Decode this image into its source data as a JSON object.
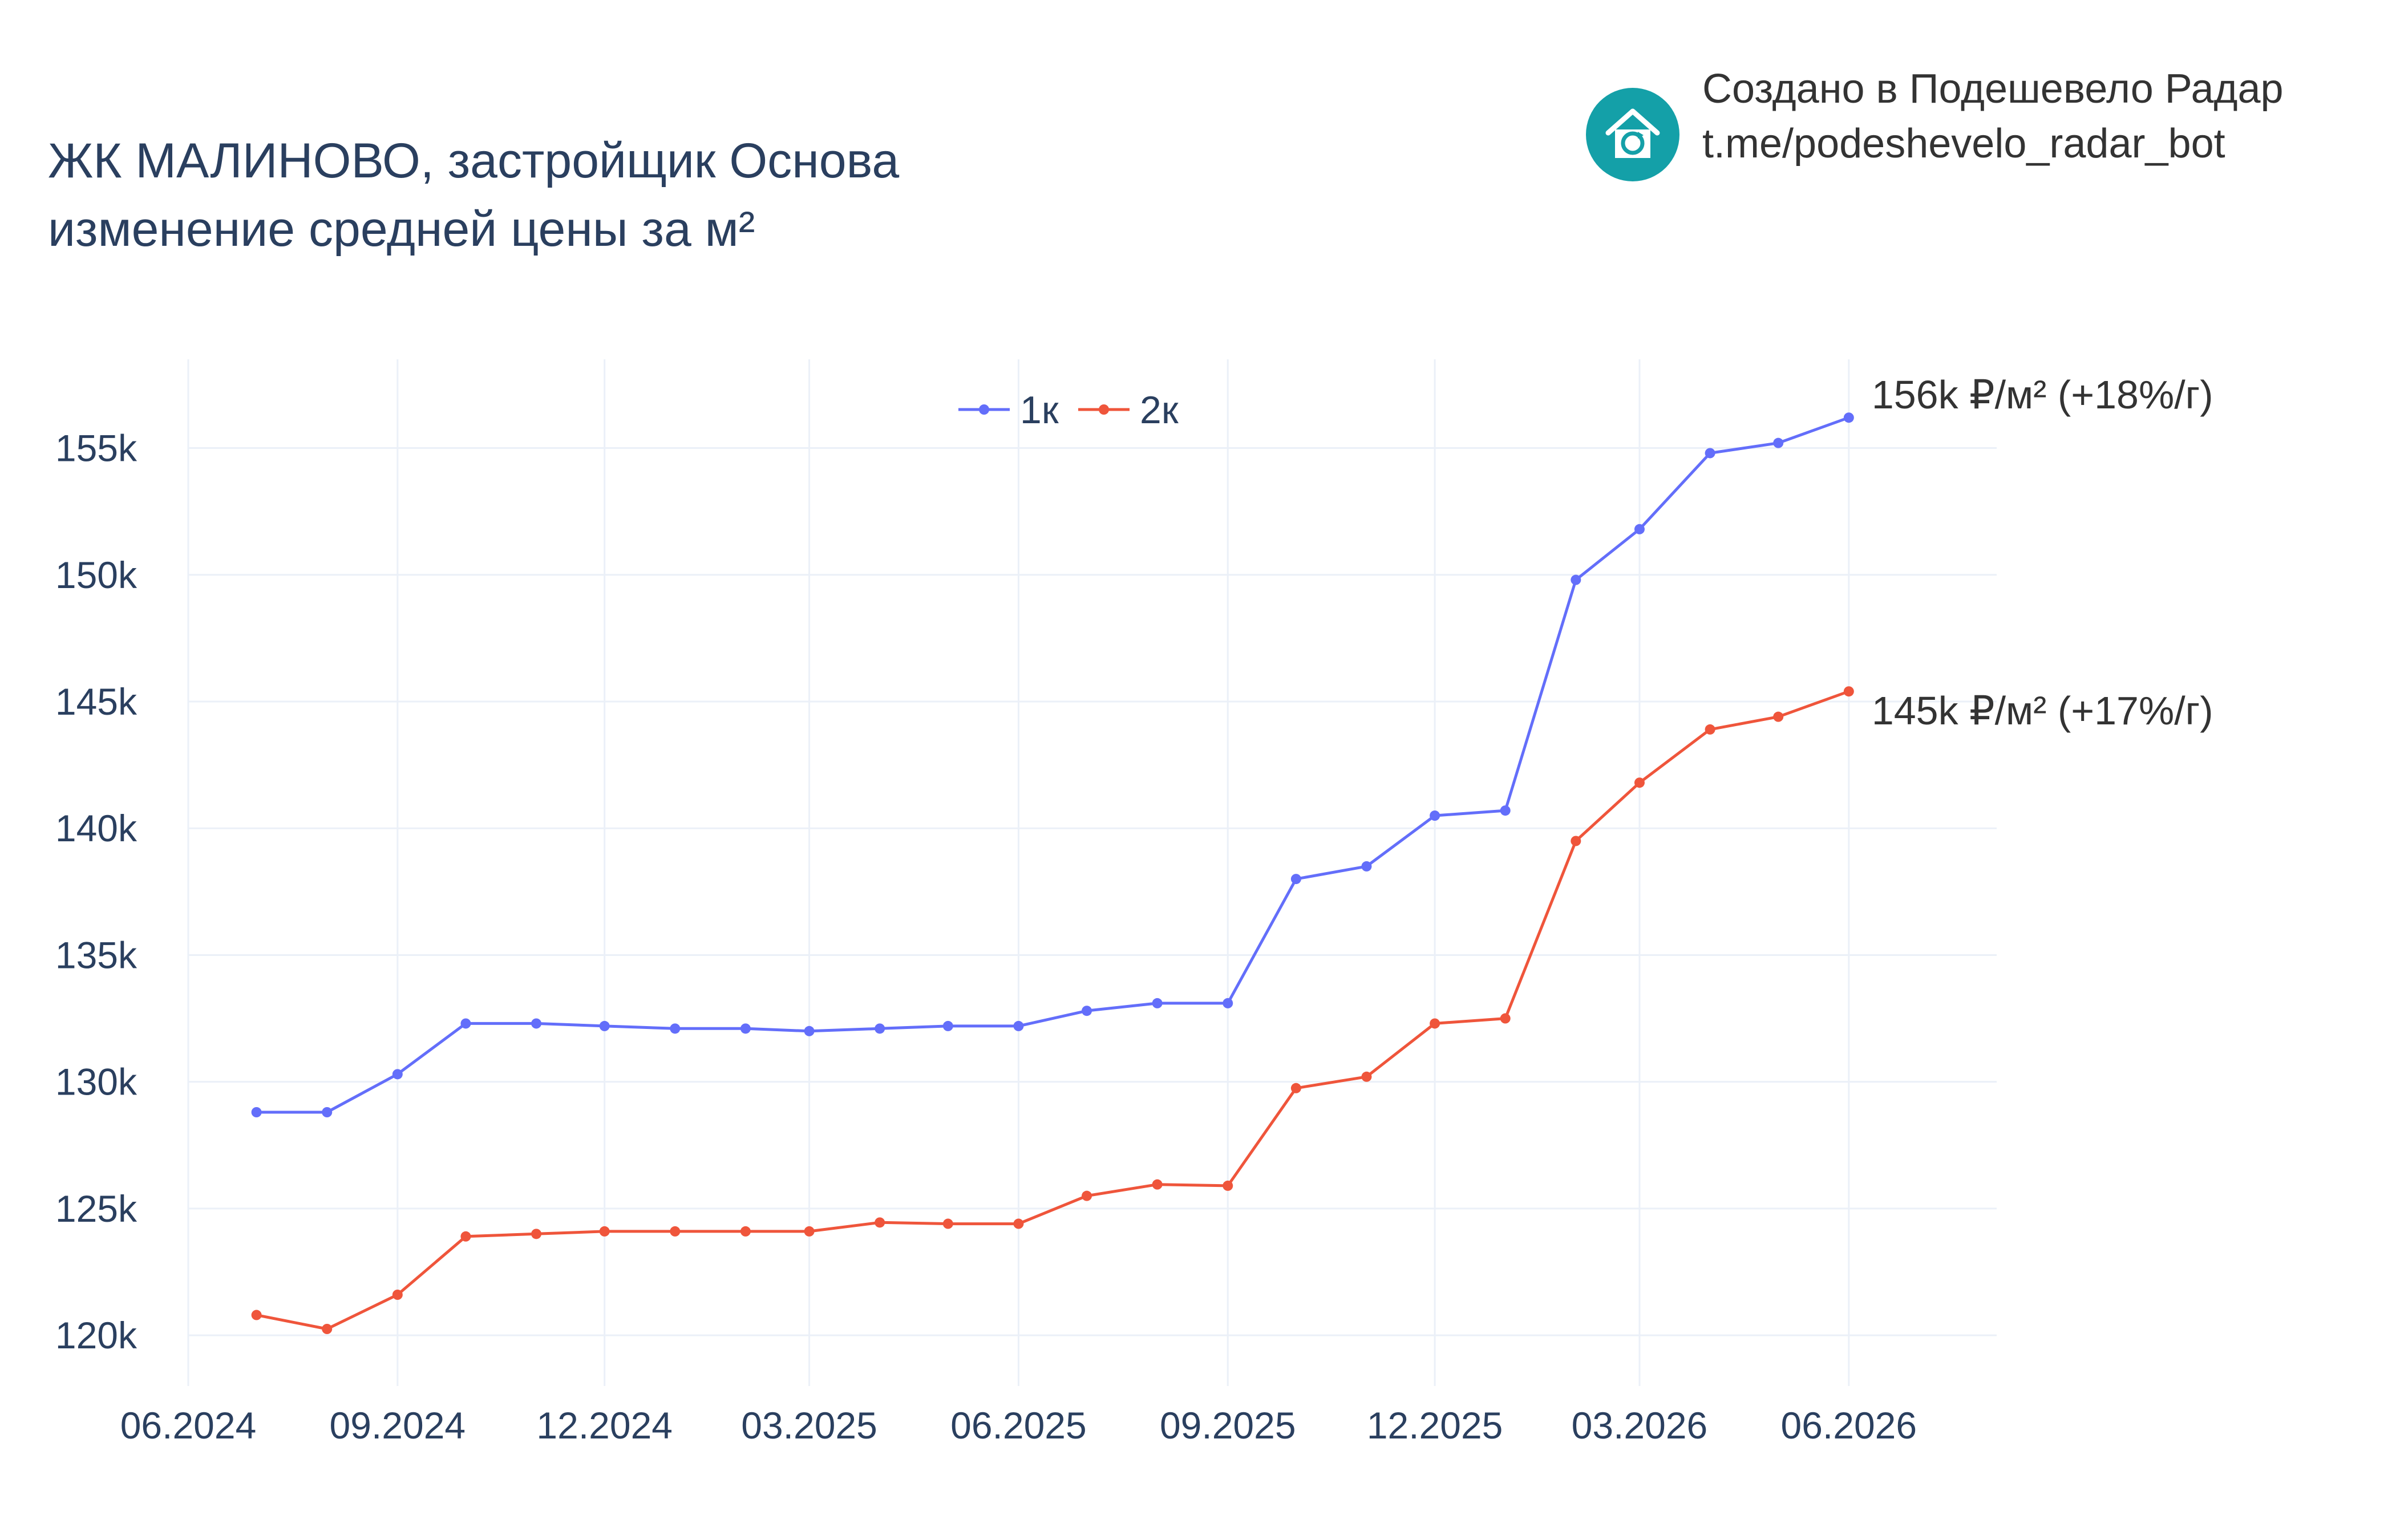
{
  "title_line1": "ЖК МАЛИНОВО, застройщик Основа",
  "title_line2": "изменение средней цены за м²",
  "credit": {
    "line1": "Создано в Подешевело Радар",
    "line2": "t.me/podeshevelo_radar_bot",
    "logo_icon": "house-refresh-icon",
    "logo_color": "#14a0a8"
  },
  "chart_data": {
    "type": "line",
    "title": "ЖК МАЛИНОВО, застройщик Основа изменение средней цены за м²",
    "xlabel": "",
    "ylabel": "",
    "x": [
      "2024-07-01",
      "2024-08-01",
      "2024-09-01",
      "2024-10-01",
      "2024-11-01",
      "2024-12-01",
      "2025-01-01",
      "2025-02-01",
      "2025-03-01",
      "2025-04-01",
      "2025-05-01",
      "2025-06-01",
      "2025-07-01",
      "2025-08-01",
      "2025-09-01",
      "2025-10-01",
      "2025-11-01",
      "2025-12-01",
      "2026-01-01",
      "2026-02-01",
      "2026-03-01",
      "2026-04-01",
      "2026-05-01",
      "2026-06-01"
    ],
    "x_ticks": [
      "06.2024",
      "09.2024",
      "12.2024",
      "03.2025",
      "06.2025",
      "09.2025",
      "12.2025",
      "03.2026",
      "06.2026"
    ],
    "x_tick_dates": [
      "2024-06-01",
      "2024-09-01",
      "2024-12-01",
      "2025-03-01",
      "2025-06-01",
      "2025-09-01",
      "2025-12-01",
      "2026-03-01",
      "2026-06-01"
    ],
    "xlim": [
      "2024-06-01",
      "2026-08-05"
    ],
    "y_ticks": [
      "120k",
      "125k",
      "130k",
      "135k",
      "140k",
      "145k",
      "150k",
      "155k"
    ],
    "y_tick_values": [
      120000,
      125000,
      130000,
      135000,
      140000,
      145000,
      150000,
      155000
    ],
    "ylim": [
      118000,
      158500
    ],
    "grid": true,
    "legend_position": "top-center",
    "series": [
      {
        "name": "1к",
        "color": "#636efa",
        "values": [
          128800,
          128800,
          130300,
          132300,
          132300,
          132200,
          132100,
          132100,
          132000,
          132100,
          132200,
          132200,
          132800,
          133100,
          133100,
          138000,
          138500,
          140500,
          140700,
          149800,
          151800,
          154800,
          155200,
          156200
        ],
        "end_label": "156k ₽/м² (+18%/г)"
      },
      {
        "name": "2к",
        "color": "#ef553b",
        "values": [
          120800,
          120250,
          121600,
          123900,
          124000,
          124100,
          124100,
          124100,
          124100,
          124450,
          124400,
          124400,
          125500,
          125950,
          125900,
          129750,
          130200,
          132300,
          132500,
          139500,
          141800,
          143900,
          144400,
          145400
        ],
        "end_label": "145k ₽/м² (+17%/г)"
      }
    ]
  }
}
